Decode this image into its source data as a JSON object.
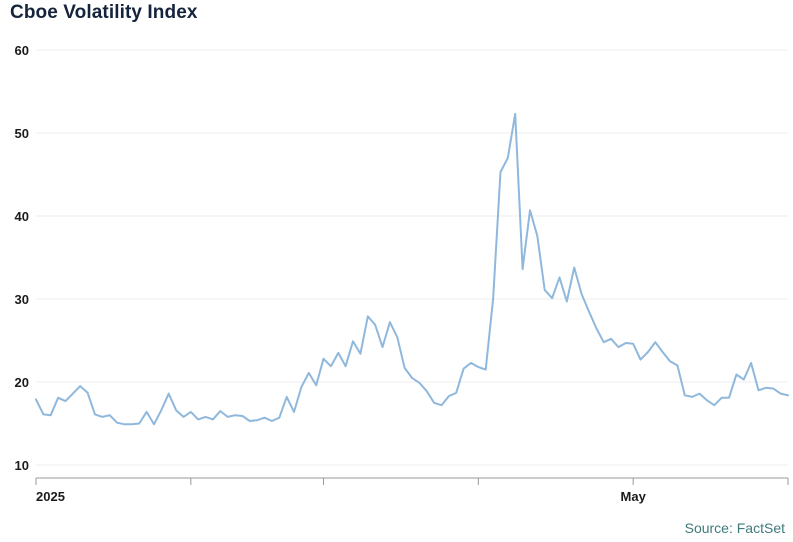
{
  "title": "Cboe Volatility Index",
  "source": "Source: FactSet",
  "colors": {
    "line": "#8fb8dc",
    "title": "#15243c",
    "axis": "#999999",
    "tick_label": "#1b1b1b",
    "grid": "#ececec",
    "source": "#3e7b7b"
  },
  "chart_data": {
    "type": "line",
    "title": "Cboe Volatility Index",
    "ylim": [
      10,
      60
    ],
    "y_ticks": [
      10,
      20,
      30,
      40,
      50,
      60
    ],
    "grid": "horizontal-faint",
    "legend": "none",
    "x_ticks": [
      {
        "index": 0,
        "label": "2025"
      },
      {
        "index": 21,
        "label": ""
      },
      {
        "index": 39,
        "label": ""
      },
      {
        "index": 60,
        "label": ""
      },
      {
        "index": 81,
        "label": "May"
      },
      {
        "index": 102,
        "label": ""
      }
    ],
    "values": [
      17.9,
      16.1,
      16.0,
      18.1,
      17.7,
      18.6,
      19.5,
      18.7,
      16.1,
      15.8,
      16.0,
      15.1,
      14.9,
      14.9,
      15.0,
      16.4,
      14.9,
      16.6,
      18.6,
      16.6,
      15.8,
      16.4,
      15.5,
      15.8,
      15.5,
      16.5,
      15.8,
      16.0,
      15.9,
      15.3,
      15.4,
      15.7,
      15.3,
      15.7,
      18.2,
      16.4,
      19.4,
      21.1,
      19.6,
      22.8,
      21.9,
      23.5,
      21.9,
      24.9,
      23.4,
      27.9,
      26.9,
      24.2,
      27.2,
      25.4,
      21.7,
      20.5,
      19.9,
      18.9,
      17.5,
      17.2,
      18.3,
      18.7,
      21.6,
      22.3,
      21.8,
      21.5,
      30.0,
      45.3,
      47.0,
      52.3,
      33.6,
      40.7,
      37.6,
      31.1,
      30.1,
      32.6,
      29.7,
      33.8,
      30.6,
      28.5,
      26.5,
      24.8,
      25.2,
      24.2,
      24.7,
      24.6,
      22.7,
      23.6,
      24.8,
      23.6,
      22.5,
      22.0,
      18.4,
      18.2,
      18.6,
      17.8,
      17.2,
      18.1,
      18.1,
      20.9,
      20.3,
      22.3,
      19.0,
      19.3,
      19.2,
      18.6,
      18.4
    ]
  }
}
